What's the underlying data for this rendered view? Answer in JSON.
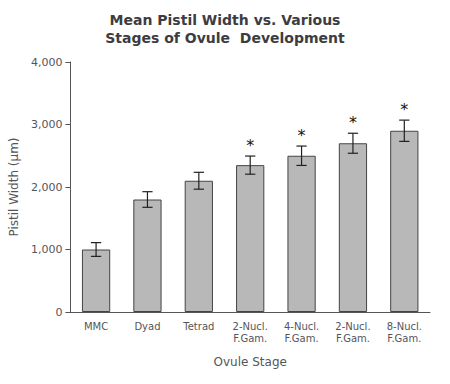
{
  "chart_data": {
    "type": "bar",
    "title": "Mean Pistil Width vs. Various\nStages of Ovule  Development",
    "xlabel": "Ovule Stage",
    "ylabel": "Pistil Width (µm)",
    "categories": [
      "MMC",
      "Dyad",
      "Tetrad",
      "2-Nucl.\nF.Gam.",
      "4-Nucl.\nF.Gam.",
      "2-Nucl.\nF.Gam.",
      "8-Nucl.\nF.Gam."
    ],
    "values": [
      1000,
      1800,
      2100,
      2350,
      2500,
      2700,
      2900
    ],
    "errors": [
      110,
      125,
      135,
      145,
      155,
      160,
      170
    ],
    "annotations": [
      null,
      null,
      null,
      "*",
      "*",
      "*",
      "*"
    ],
    "color": "#b8b8b8",
    "ylim": [
      0,
      4000
    ],
    "yticks": [
      0,
      1000,
      2000,
      3000,
      4000
    ],
    "grid": false
  }
}
